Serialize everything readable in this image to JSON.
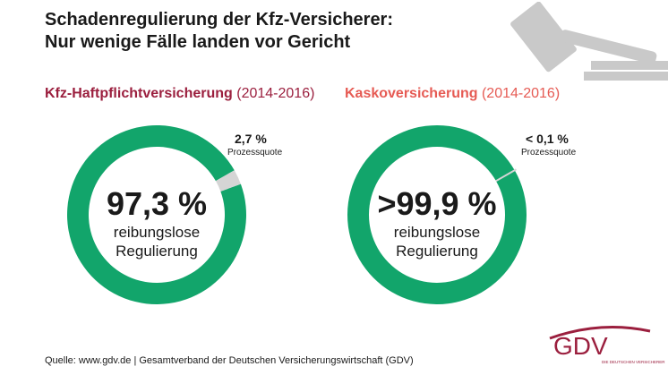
{
  "title_line1": "Schadenregulierung der Kfz-Versicherer:",
  "title_line2": "Nur wenige Fälle landen vor Gericht",
  "colors": {
    "green": "#12a56b",
    "gray": "#d5d5d5",
    "darkred": "#9b1f3e",
    "salmon": "#e65b54",
    "gavel": "#c9c9c9"
  },
  "chart_data": [
    {
      "type": "pie",
      "title": "Kfz-Haftpflichtversicherung",
      "period": "(2014-2016)",
      "categories": [
        "reibungslose Regulierung",
        "Prozessquote"
      ],
      "values": [
        97.3,
        2.7
      ],
      "center_value": "97,3 %",
      "center_label_1": "reibungslose",
      "center_label_2": "Regulierung",
      "callout_value": "2,7 %",
      "callout_label": "Prozessquote"
    },
    {
      "type": "pie",
      "title": "Kaskoversicherung",
      "period": "(2014-2016)",
      "categories": [
        "reibungslose Regulierung",
        "Prozessquote"
      ],
      "values": [
        99.9,
        0.1
      ],
      "center_value": ">99,9 %",
      "center_label_1": "reibungslose",
      "center_label_2": "Regulierung",
      "callout_value": "< 0,1 %",
      "callout_label": "Prozessquote"
    }
  ],
  "footer": "Quelle: www.gdv.de | Gesamtverband der Deutschen Versicherungswirtschaft (GDV)",
  "logo": {
    "name": "GDV",
    "tagline": "DIE DEUTSCHEN VERSICHERER"
  }
}
